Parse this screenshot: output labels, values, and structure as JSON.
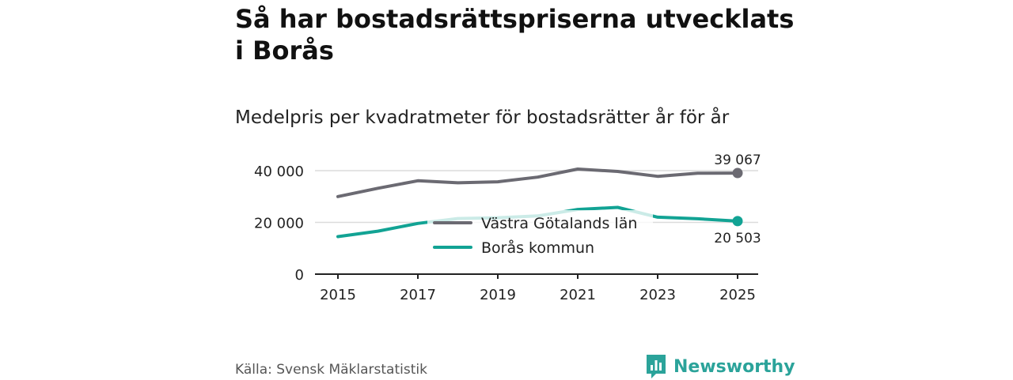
{
  "header": {
    "title": "Så har bostadsrättspriserna utvecklats i Borås",
    "subtitle": "Medelpris per kvadratmeter för bostadsrätter år för år"
  },
  "chart_data": {
    "type": "line",
    "title": "Medelpris per kvadratmeter för bostadsrätter år för år",
    "xlabel": "",
    "ylabel": "",
    "x": [
      2015,
      2016,
      2017,
      2018,
      2019,
      2020,
      2021,
      2022,
      2023,
      2024,
      2025
    ],
    "xticks": [
      2015,
      2017,
      2019,
      2021,
      2023,
      2025
    ],
    "xtick_labels": [
      "2015",
      "2017",
      "2019",
      "2021",
      "2023",
      "2025"
    ],
    "yticks": [
      0,
      20000,
      40000
    ],
    "ytick_labels": [
      "0",
      "20 000",
      "40 000"
    ],
    "ylim": [
      0,
      40000
    ],
    "xlim": [
      2015,
      2025
    ],
    "grid": true,
    "legend_position": "center",
    "series": [
      {
        "name": "Västra Götalands län",
        "color": "#6b6a72",
        "values": [
          30000,
          33200,
          36100,
          35300,
          35700,
          37500,
          40600,
          39700,
          37800,
          39000,
          39067
        ],
        "end_label": "39 067",
        "end_label_position": "above"
      },
      {
        "name": "Borås kommun",
        "color": "#12a394",
        "values": [
          14500,
          16600,
          19600,
          21500,
          21800,
          22500,
          25000,
          25800,
          22000,
          21400,
          20503
        ],
        "end_label": "20 503",
        "end_label_position": "below"
      }
    ]
  },
  "footer": {
    "source": "Källa: Svensk Mäklarstatistik",
    "brand": "Newsworthy",
    "brand_color": "#2ba39a"
  }
}
